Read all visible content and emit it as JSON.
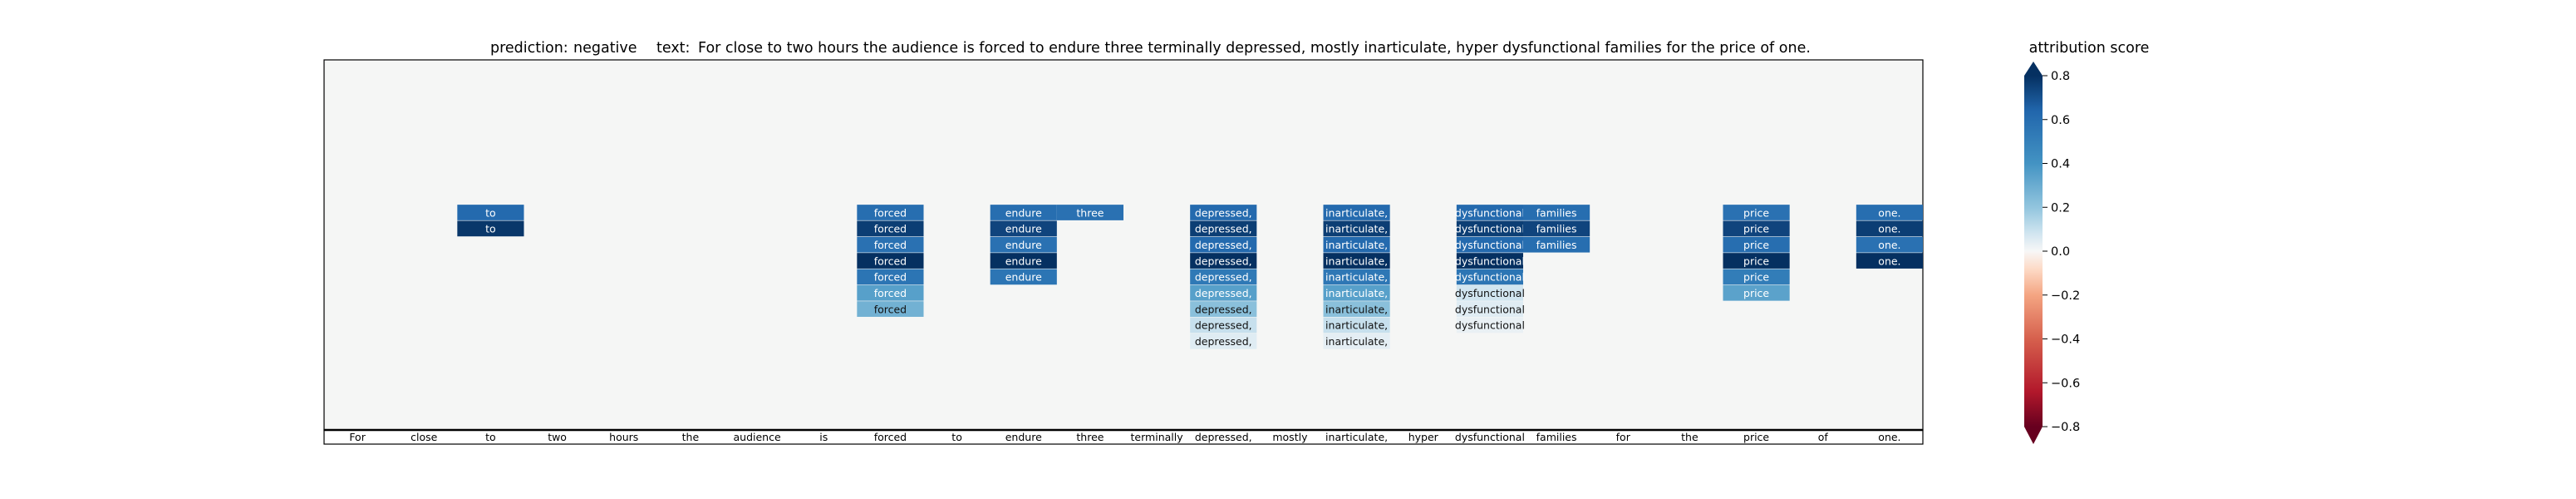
{
  "title": {
    "prediction_label": "prediction:",
    "prediction_value": "negative",
    "text_label": "text:",
    "text_value": "For close to two hours the audience is forced to endure three terminally depressed, mostly inarticulate, hyper dysfunctional families for the price of one."
  },
  "chart_data": {
    "type": "heatmap",
    "tokens": [
      "For",
      "close",
      "to",
      "two",
      "hours",
      "the",
      "audience",
      "is",
      "forced",
      "to",
      "endure",
      "three",
      "terminally",
      "depressed,",
      "mostly",
      "inarticulate,",
      "hyper",
      "dysfunctional",
      "families",
      "for",
      "the",
      "price",
      "of",
      "one."
    ],
    "n_rows": 23,
    "cells": [
      {
        "col": 2,
        "row": 9,
        "text": "to",
        "score": 0.62
      },
      {
        "col": 2,
        "row": 10,
        "text": "to",
        "score": 0.78
      },
      {
        "col": 8,
        "row": 9,
        "text": "forced",
        "score": 0.6
      },
      {
        "col": 8,
        "row": 10,
        "text": "forced",
        "score": 0.76
      },
      {
        "col": 8,
        "row": 11,
        "text": "forced",
        "score": 0.58
      },
      {
        "col": 8,
        "row": 12,
        "text": "forced",
        "score": 0.8
      },
      {
        "col": 8,
        "row": 13,
        "text": "forced",
        "score": 0.56
      },
      {
        "col": 8,
        "row": 14,
        "text": "forced",
        "score": 0.35
      },
      {
        "col": 8,
        "row": 15,
        "text": "forced",
        "score": 0.28
      },
      {
        "col": 10,
        "row": 9,
        "text": "endure",
        "score": 0.6
      },
      {
        "col": 10,
        "row": 10,
        "text": "endure",
        "score": 0.74
      },
      {
        "col": 10,
        "row": 11,
        "text": "endure",
        "score": 0.58
      },
      {
        "col": 10,
        "row": 12,
        "text": "endure",
        "score": 0.8
      },
      {
        "col": 10,
        "row": 13,
        "text": "endure",
        "score": 0.56
      },
      {
        "col": 11,
        "row": 9,
        "text": "three",
        "score": 0.58
      },
      {
        "col": 13,
        "row": 9,
        "text": "depressed,",
        "score": 0.62
      },
      {
        "col": 13,
        "row": 10,
        "text": "depressed,",
        "score": 0.76
      },
      {
        "col": 13,
        "row": 11,
        "text": "depressed,",
        "score": 0.62
      },
      {
        "col": 13,
        "row": 12,
        "text": "depressed,",
        "score": 0.8
      },
      {
        "col": 13,
        "row": 13,
        "text": "depressed,",
        "score": 0.54
      },
      {
        "col": 13,
        "row": 14,
        "text": "depressed,",
        "score": 0.35
      },
      {
        "col": 13,
        "row": 15,
        "text": "depressed,",
        "score": 0.22
      },
      {
        "col": 13,
        "row": 16,
        "text": "depressed,",
        "score": 0.1
      },
      {
        "col": 13,
        "row": 17,
        "text": "depressed,",
        "score": 0.05
      },
      {
        "col": 15,
        "row": 9,
        "text": "inarticulate,",
        "score": 0.62
      },
      {
        "col": 15,
        "row": 10,
        "text": "inarticulate,",
        "score": 0.76
      },
      {
        "col": 15,
        "row": 11,
        "text": "inarticulate,",
        "score": 0.62
      },
      {
        "col": 15,
        "row": 12,
        "text": "inarticulate,",
        "score": 0.8
      },
      {
        "col": 15,
        "row": 13,
        "text": "inarticulate,",
        "score": 0.55
      },
      {
        "col": 15,
        "row": 14,
        "text": "inarticulate,",
        "score": 0.35
      },
      {
        "col": 15,
        "row": 15,
        "text": "inarticulate,",
        "score": 0.22
      },
      {
        "col": 15,
        "row": 16,
        "text": "inarticulate,",
        "score": 0.1
      },
      {
        "col": 15,
        "row": 17,
        "text": "inarticulate,",
        "score": 0.04
      },
      {
        "col": 17,
        "row": 9,
        "text": "dysfunctional",
        "score": 0.62
      },
      {
        "col": 17,
        "row": 10,
        "text": "dysfunctional",
        "score": 0.76
      },
      {
        "col": 17,
        "row": 11,
        "text": "dysfunctional",
        "score": 0.62
      },
      {
        "col": 17,
        "row": 12,
        "text": "dysfunctional",
        "score": 0.8
      },
      {
        "col": 17,
        "row": 13,
        "text": "dysfunctional",
        "score": 0.56
      },
      {
        "col": 17,
        "row": 14,
        "text": "dysfunctional",
        "score": 0.08
      },
      {
        "col": 17,
        "row": 15,
        "text": "dysfunctional",
        "score": 0.05
      },
      {
        "col": 17,
        "row": 16,
        "text": "dysfunctional",
        "score": 0.03
      },
      {
        "col": 18,
        "row": 9,
        "text": "families",
        "score": 0.6
      },
      {
        "col": 18,
        "row": 10,
        "text": "families",
        "score": 0.74
      },
      {
        "col": 18,
        "row": 11,
        "text": "families",
        "score": 0.6
      },
      {
        "col": 21,
        "row": 9,
        "text": "price",
        "score": 0.58
      },
      {
        "col": 21,
        "row": 10,
        "text": "price",
        "score": 0.74
      },
      {
        "col": 21,
        "row": 11,
        "text": "price",
        "score": 0.6
      },
      {
        "col": 21,
        "row": 12,
        "text": "price",
        "score": 0.8
      },
      {
        "col": 21,
        "row": 13,
        "text": "price",
        "score": 0.52
      },
      {
        "col": 21,
        "row": 14,
        "text": "price",
        "score": 0.34
      },
      {
        "col": 23,
        "row": 9,
        "text": "one.",
        "score": 0.6
      },
      {
        "col": 23,
        "row": 10,
        "text": "one.",
        "score": 0.76
      },
      {
        "col": 23,
        "row": 11,
        "text": "one.",
        "score": 0.58
      },
      {
        "col": 23,
        "row": 12,
        "text": "one.",
        "score": 0.8
      }
    ],
    "colorbar": {
      "label": "attribution score",
      "vmin": -0.8,
      "vmax": 0.8,
      "ticks": [
        "0.8",
        "0.6",
        "0.4",
        "0.2",
        "0.0",
        "−0.2",
        "−0.4",
        "−0.6",
        "−0.8"
      ],
      "colormap": "RdBu"
    },
    "colors": {
      "background": "#f5f6f5",
      "axis": "#000000",
      "cell_text_dark_bg": "#ffffff",
      "cell_text_light_bg": "#111111"
    }
  }
}
